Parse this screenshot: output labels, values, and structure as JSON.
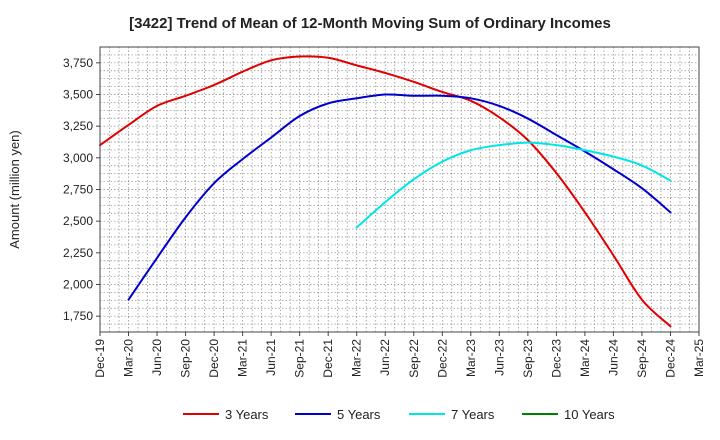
{
  "chart_data": {
    "type": "line",
    "title": "[3422]  Trend of Mean of 12-Month Moving Sum of Ordinary Incomes",
    "xlabel": "",
    "ylabel": "Amount (million yen)",
    "ylim": [
      1625,
      3875
    ],
    "yticks": [
      1750,
      2000,
      2250,
      2500,
      2750,
      3000,
      3250,
      3500,
      3750
    ],
    "ytick_labels": [
      "1,750",
      "2,000",
      "2,250",
      "2,500",
      "2,750",
      "3,000",
      "3,250",
      "3,500",
      "3,750"
    ],
    "categories": [
      "Dec-19",
      "Mar-20",
      "Jun-20",
      "Sep-20",
      "Dec-20",
      "Mar-21",
      "Jun-21",
      "Sep-21",
      "Dec-21",
      "Mar-22",
      "Jun-22",
      "Sep-22",
      "Dec-22",
      "Mar-23",
      "Jun-23",
      "Sep-23",
      "Dec-23",
      "Mar-24",
      "Jun-24",
      "Sep-24",
      "Dec-24",
      "Mar-25"
    ],
    "grid": true,
    "legend_position": "bottom",
    "series": [
      {
        "name": "3 Years",
        "color": "#e00000",
        "points": [
          [
            0,
            3100
          ],
          [
            1,
            3260
          ],
          [
            2,
            3410
          ],
          [
            3,
            3490
          ],
          [
            4,
            3575
          ],
          [
            5,
            3680
          ],
          [
            6,
            3770
          ],
          [
            7,
            3800
          ],
          [
            8,
            3790
          ],
          [
            9,
            3730
          ],
          [
            10,
            3670
          ],
          [
            11,
            3600
          ],
          [
            12,
            3520
          ],
          [
            13,
            3450
          ],
          [
            14,
            3320
          ],
          [
            15,
            3140
          ],
          [
            16,
            2880
          ],
          [
            17,
            2570
          ],
          [
            18,
            2230
          ],
          [
            19,
            1880
          ],
          [
            20,
            1670
          ]
        ]
      },
      {
        "name": "5 Years",
        "color": "#0000cc",
        "points": [
          [
            1,
            1880
          ],
          [
            2,
            2210
          ],
          [
            3,
            2530
          ],
          [
            4,
            2800
          ],
          [
            5,
            2990
          ],
          [
            6,
            3160
          ],
          [
            7,
            3330
          ],
          [
            8,
            3430
          ],
          [
            9,
            3470
          ],
          [
            10,
            3500
          ],
          [
            11,
            3490
          ],
          [
            12,
            3490
          ],
          [
            13,
            3470
          ],
          [
            14,
            3410
          ],
          [
            15,
            3310
          ],
          [
            16,
            3180
          ],
          [
            17,
            3050
          ],
          [
            18,
            2910
          ],
          [
            19,
            2760
          ],
          [
            20,
            2570
          ]
        ]
      },
      {
        "name": "7 Years",
        "color": "#00e5e5",
        "points": [
          [
            9,
            2450
          ],
          [
            10,
            2650
          ],
          [
            11,
            2830
          ],
          [
            12,
            2970
          ],
          [
            13,
            3060
          ],
          [
            14,
            3100
          ],
          [
            15,
            3120
          ],
          [
            16,
            3100
          ],
          [
            17,
            3060
          ],
          [
            18,
            3010
          ],
          [
            19,
            2940
          ],
          [
            20,
            2820
          ]
        ]
      },
      {
        "name": "10 Years",
        "color": "#008000",
        "points": []
      }
    ]
  }
}
